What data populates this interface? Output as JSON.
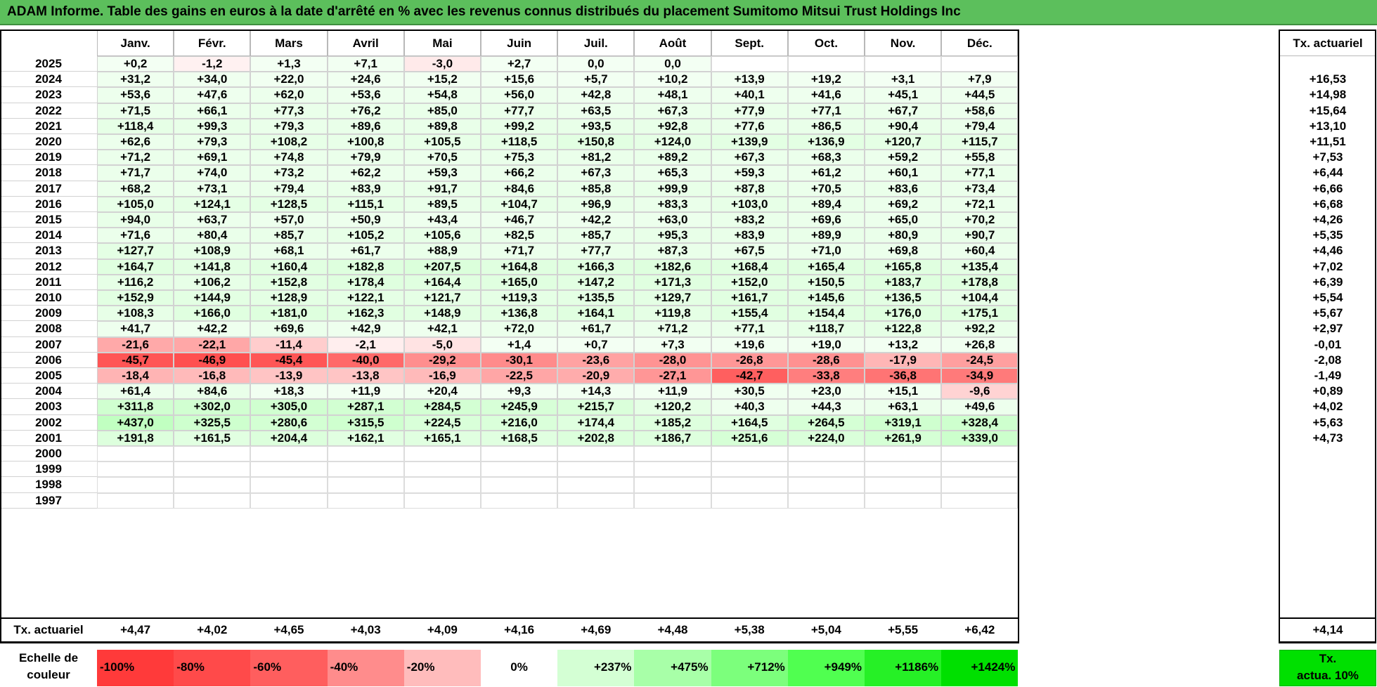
{
  "title": "ADAM Informe. Table des gains en euros à la date d'arrêté en % avec les revenus connus distribués du placement Sumitomo Mitsui Trust Holdings Inc",
  "months": [
    "Janv.",
    "Févr.",
    "Mars",
    "Avril",
    "Mai",
    "Juin",
    "Juil.",
    "Août",
    "Sept.",
    "Oct.",
    "Nov.",
    "Déc."
  ],
  "rate_header": "Tx. actuariel",
  "rows": [
    {
      "year": "2025",
      "values": [
        "+0,2",
        "-1,2",
        "+1,3",
        "+7,1",
        "-3,0",
        "+2,7",
        "0,0",
        "0,0",
        "",
        "",
        "",
        ""
      ],
      "rate": ""
    },
    {
      "year": "2024",
      "values": [
        "+31,2",
        "+34,0",
        "+22,0",
        "+24,6",
        "+15,2",
        "+15,6",
        "+5,7",
        "+10,2",
        "+13,9",
        "+19,2",
        "+3,1",
        "+7,9"
      ],
      "rate": "+16,53"
    },
    {
      "year": "2023",
      "values": [
        "+53,6",
        "+47,6",
        "+62,0",
        "+53,6",
        "+54,8",
        "+56,0",
        "+42,8",
        "+48,1",
        "+40,1",
        "+41,6",
        "+45,1",
        "+44,5"
      ],
      "rate": "+14,98"
    },
    {
      "year": "2022",
      "values": [
        "+71,5",
        "+66,1",
        "+77,3",
        "+76,2",
        "+85,0",
        "+77,7",
        "+63,5",
        "+67,3",
        "+77,9",
        "+77,1",
        "+67,7",
        "+58,6"
      ],
      "rate": "+15,64"
    },
    {
      "year": "2021",
      "values": [
        "+118,4",
        "+99,3",
        "+79,3",
        "+89,6",
        "+89,8",
        "+99,2",
        "+93,5",
        "+92,8",
        "+77,6",
        "+86,5",
        "+90,4",
        "+79,4"
      ],
      "rate": "+13,10"
    },
    {
      "year": "2020",
      "values": [
        "+62,6",
        "+79,3",
        "+108,2",
        "+100,8",
        "+105,5",
        "+118,5",
        "+150,8",
        "+124,0",
        "+139,9",
        "+136,9",
        "+120,7",
        "+115,7"
      ],
      "rate": "+11,51"
    },
    {
      "year": "2019",
      "values": [
        "+71,2",
        "+69,1",
        "+74,8",
        "+79,9",
        "+70,5",
        "+75,3",
        "+81,2",
        "+89,2",
        "+67,3",
        "+68,3",
        "+59,2",
        "+55,8"
      ],
      "rate": "+7,53"
    },
    {
      "year": "2018",
      "values": [
        "+71,7",
        "+74,0",
        "+73,2",
        "+62,2",
        "+59,3",
        "+66,2",
        "+67,3",
        "+65,3",
        "+59,3",
        "+61,2",
        "+60,1",
        "+77,1"
      ],
      "rate": "+6,44"
    },
    {
      "year": "2017",
      "values": [
        "+68,2",
        "+73,1",
        "+79,4",
        "+83,9",
        "+91,7",
        "+84,6",
        "+85,8",
        "+99,9",
        "+87,8",
        "+70,5",
        "+83,6",
        "+73,4"
      ],
      "rate": "+6,66"
    },
    {
      "year": "2016",
      "values": [
        "+105,0",
        "+124,1",
        "+128,5",
        "+115,1",
        "+89,5",
        "+104,7",
        "+96,9",
        "+83,3",
        "+103,0",
        "+89,4",
        "+69,2",
        "+72,1"
      ],
      "rate": "+6,68"
    },
    {
      "year": "2015",
      "values": [
        "+94,0",
        "+63,7",
        "+57,0",
        "+50,9",
        "+43,4",
        "+46,7",
        "+42,2",
        "+63,0",
        "+83,2",
        "+69,6",
        "+65,0",
        "+70,2"
      ],
      "rate": "+4,26"
    },
    {
      "year": "2014",
      "values": [
        "+71,6",
        "+80,4",
        "+85,7",
        "+105,2",
        "+105,6",
        "+82,5",
        "+85,7",
        "+95,3",
        "+83,9",
        "+89,9",
        "+80,9",
        "+90,7"
      ],
      "rate": "+5,35"
    },
    {
      "year": "2013",
      "values": [
        "+127,7",
        "+108,9",
        "+68,1",
        "+61,7",
        "+88,9",
        "+71,7",
        "+77,7",
        "+87,3",
        "+67,5",
        "+71,0",
        "+69,8",
        "+60,4"
      ],
      "rate": "+4,46"
    },
    {
      "year": "2012",
      "values": [
        "+164,7",
        "+141,8",
        "+160,4",
        "+182,8",
        "+207,5",
        "+164,8",
        "+166,3",
        "+182,6",
        "+168,4",
        "+165,4",
        "+165,8",
        "+135,4"
      ],
      "rate": "+7,02"
    },
    {
      "year": "2011",
      "values": [
        "+116,2",
        "+106,2",
        "+152,8",
        "+178,4",
        "+164,4",
        "+165,0",
        "+147,2",
        "+171,3",
        "+152,0",
        "+150,5",
        "+183,7",
        "+178,8"
      ],
      "rate": "+6,39"
    },
    {
      "year": "2010",
      "values": [
        "+152,9",
        "+144,9",
        "+128,9",
        "+122,1",
        "+121,7",
        "+119,3",
        "+135,5",
        "+129,7",
        "+161,7",
        "+145,6",
        "+136,5",
        "+104,4"
      ],
      "rate": "+5,54"
    },
    {
      "year": "2009",
      "values": [
        "+108,3",
        "+166,0",
        "+181,0",
        "+162,3",
        "+148,9",
        "+136,8",
        "+164,1",
        "+119,8",
        "+155,4",
        "+154,4",
        "+176,0",
        "+175,1"
      ],
      "rate": "+5,67"
    },
    {
      "year": "2008",
      "values": [
        "+41,7",
        "+42,2",
        "+69,6",
        "+42,9",
        "+42,1",
        "+72,0",
        "+61,7",
        "+71,2",
        "+77,1",
        "+118,7",
        "+122,8",
        "+92,2"
      ],
      "rate": "+2,97"
    },
    {
      "year": "2007",
      "values": [
        "-21,6",
        "-22,1",
        "-11,4",
        "-2,1",
        "-5,0",
        "+1,4",
        "+0,7",
        "+7,3",
        "+19,6",
        "+19,0",
        "+13,2",
        "+26,8"
      ],
      "rate": "-0,01"
    },
    {
      "year": "2006",
      "values": [
        "-45,7",
        "-46,9",
        "-45,4",
        "-40,0",
        "-29,2",
        "-30,1",
        "-23,6",
        "-28,0",
        "-26,8",
        "-28,6",
        "-17,9",
        "-24,5"
      ],
      "rate": "-2,08"
    },
    {
      "year": "2005",
      "values": [
        "-18,4",
        "-16,8",
        "-13,9",
        "-13,8",
        "-16,9",
        "-22,5",
        "-20,9",
        "-27,1",
        "-42,7",
        "-33,8",
        "-36,8",
        "-34,9"
      ],
      "rate": "-1,49"
    },
    {
      "year": "2004",
      "values": [
        "+61,4",
        "+84,6",
        "+18,3",
        "+11,9",
        "+20,4",
        "+9,3",
        "+14,3",
        "+11,9",
        "+30,5",
        "+23,0",
        "+15,1",
        "-9,6"
      ],
      "rate": "+0,89"
    },
    {
      "year": "2003",
      "values": [
        "+311,8",
        "+302,0",
        "+305,0",
        "+287,1",
        "+284,5",
        "+245,9",
        "+215,7",
        "+120,2",
        "+40,3",
        "+44,3",
        "+63,1",
        "+49,6"
      ],
      "rate": "+4,02"
    },
    {
      "year": "2002",
      "values": [
        "+437,0",
        "+325,5",
        "+280,6",
        "+315,5",
        "+224,5",
        "+216,0",
        "+174,4",
        "+185,2",
        "+164,5",
        "+264,5",
        "+319,1",
        "+328,4"
      ],
      "rate": "+5,63"
    },
    {
      "year": "2001",
      "values": [
        "+191,8",
        "+161,5",
        "+204,4",
        "+162,1",
        "+165,1",
        "+168,5",
        "+202,8",
        "+186,7",
        "+251,6",
        "+224,0",
        "+261,9",
        "+339,0"
      ],
      "rate": "+4,73"
    },
    {
      "year": "2000",
      "values": [
        "",
        "",
        "",
        "",
        "",
        "",
        "",
        "",
        "",
        "",
        "",
        ""
      ],
      "rate": ""
    },
    {
      "year": "1999",
      "values": [
        "",
        "",
        "",
        "",
        "",
        "",
        "",
        "",
        "",
        "",
        "",
        ""
      ],
      "rate": ""
    },
    {
      "year": "1998",
      "values": [
        "",
        "",
        "",
        "",
        "",
        "",
        "",
        "",
        "",
        "",
        "",
        ""
      ],
      "rate": ""
    },
    {
      "year": "1997",
      "values": [
        "",
        "",
        "",
        "",
        "",
        "",
        "",
        "",
        "",
        "",
        "",
        ""
      ],
      "rate": ""
    }
  ],
  "footer": {
    "label": "Tx. actuariel",
    "values": [
      "+4,47",
      "+4,02",
      "+4,65",
      "+4,03",
      "+4,09",
      "+4,16",
      "+4,69",
      "+4,48",
      "+5,38",
      "+5,04",
      "+5,55",
      "+6,42"
    ],
    "rate": "+4,14"
  },
  "scale": {
    "label_line1": "Echelle de",
    "label_line2": "couleur",
    "items": [
      {
        "text": "-100%",
        "color": "#ff3a3a",
        "align": "left"
      },
      {
        "text": "-80%",
        "color": "#ff4a4a",
        "align": "left"
      },
      {
        "text": "-60%",
        "color": "#ff5e5e",
        "align": "left"
      },
      {
        "text": "-40%",
        "color": "#ff8c8c",
        "align": "left"
      },
      {
        "text": "-20%",
        "color": "#ffbcbc",
        "align": "left"
      },
      {
        "text": "0%",
        "color": "#ffffff",
        "align": "center"
      },
      {
        "text": "+237%",
        "color": "#d4ffd4",
        "align": "right"
      },
      {
        "text": "+475%",
        "color": "#a8ffa8",
        "align": "right"
      },
      {
        "text": "+712%",
        "color": "#7cff7c",
        "align": "right"
      },
      {
        "text": "+949%",
        "color": "#50ff50",
        "align": "right"
      },
      {
        "text": "+1186%",
        "color": "#26f026",
        "align": "right"
      },
      {
        "text": "+1424%",
        "color": "#00e000",
        "align": "right"
      }
    ],
    "right_line1": "Tx.",
    "right_line2": "actua. 10%"
  }
}
